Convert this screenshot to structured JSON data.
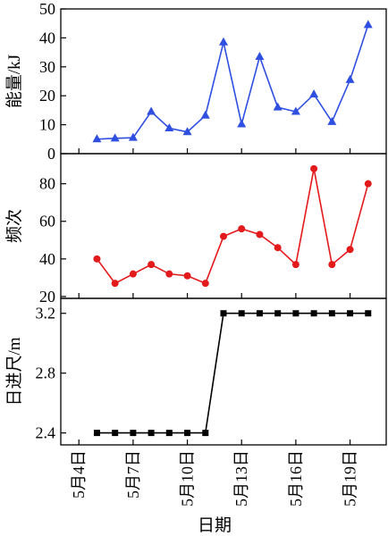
{
  "chart_data": {
    "x_dates": [
      "5月5日",
      "5月6日",
      "5月7日",
      "5月8日",
      "5月9日",
      "5月10日",
      "5月11日",
      "5月12日",
      "5月13日",
      "5月14日",
      "5月15日",
      "5月16日",
      "5月17日",
      "5月18日",
      "5月19日",
      "5月20日"
    ],
    "x_ticks": [
      {
        "date": "5月4日",
        "label": "5月4日"
      },
      {
        "date": "5月7日",
        "label": "5月7日"
      },
      {
        "date": "5月10日",
        "label": "5月10日"
      },
      {
        "date": "5月13日",
        "label": "5月13日"
      },
      {
        "date": "5月16日",
        "label": "5月16日"
      },
      {
        "date": "5月19日",
        "label": "5月19日"
      }
    ],
    "x_range": [
      "5月3日",
      "5月21日"
    ],
    "xlabel": "日期",
    "panels": [
      {
        "type": "line",
        "ylabel": "能量/kJ",
        "ylim": [
          0,
          50
        ],
        "yticks": [
          0,
          10,
          20,
          30,
          40,
          50
        ],
        "color": "#2f4fe0",
        "marker": "triangle",
        "values": [
          5,
          5.3,
          5.5,
          14.5,
          8.8,
          7.5,
          13.2,
          38.5,
          10.2,
          33.5,
          16,
          14.5,
          20.5,
          11,
          25.5,
          44.5
        ]
      },
      {
        "type": "line",
        "ylabel": "频次",
        "ylim": [
          19,
          96
        ],
        "yticks": [
          20,
          40,
          60,
          80
        ],
        "color": "#e31a1c",
        "marker": "circle",
        "values": [
          40,
          27,
          32,
          37,
          32,
          31,
          27,
          52,
          56,
          53,
          46,
          37,
          88,
          37,
          45,
          80
        ]
      },
      {
        "type": "line",
        "ylabel": "日进尺/m",
        "ylim": [
          2.32,
          3.3
        ],
        "yticks": [
          2.4,
          2.8,
          3.2
        ],
        "color": "#000000",
        "marker": "square",
        "values": [
          2.4,
          2.4,
          2.4,
          2.4,
          2.4,
          2.4,
          2.4,
          3.2,
          3.2,
          3.2,
          3.2,
          3.2,
          3.2,
          3.2,
          3.2,
          3.2
        ]
      }
    ]
  }
}
